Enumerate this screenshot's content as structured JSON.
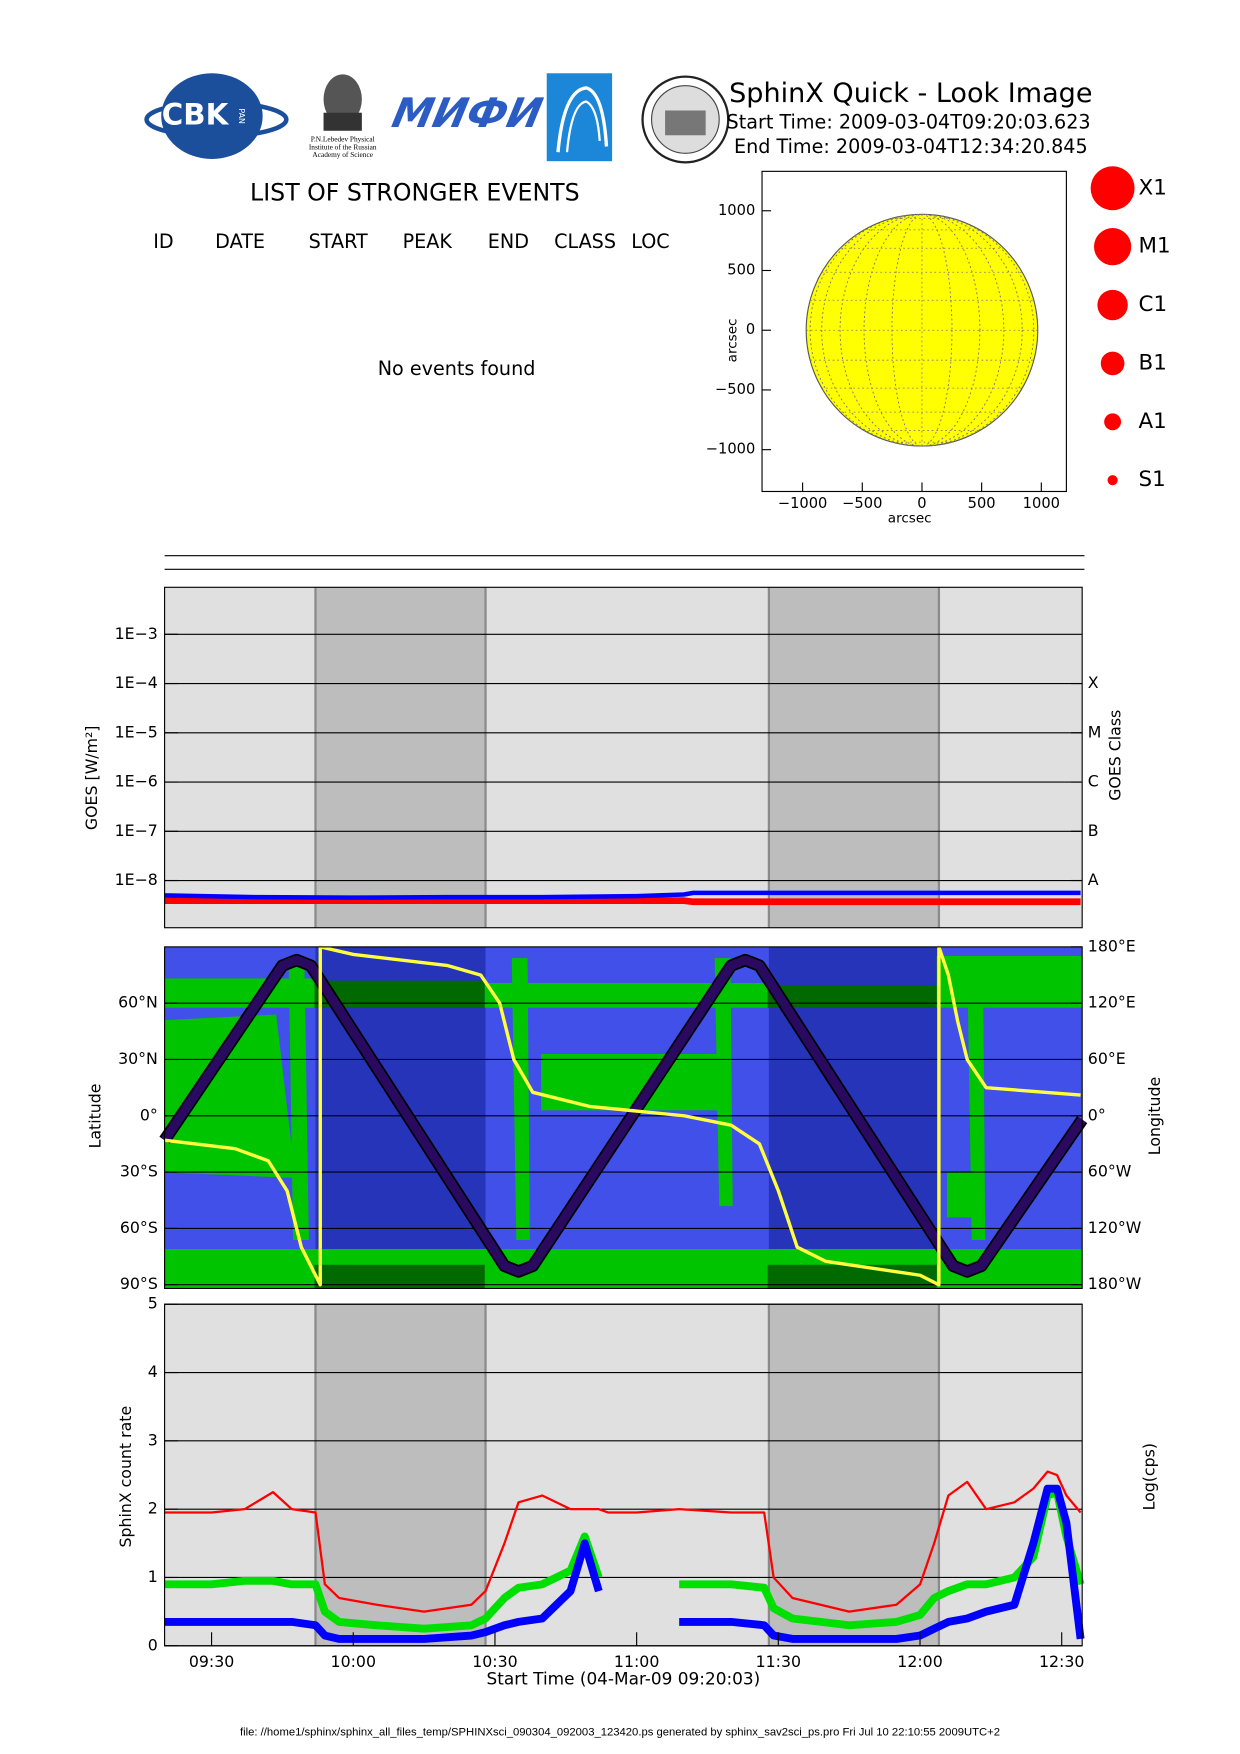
{
  "header": {
    "title": "SphinX Quick - Look Image",
    "start_time": "Start Time: 2009-03-04T09:20:03.623",
    "end_time": "End Time: 2009-03-04T12:34:20.845"
  },
  "logos": {
    "cbk": "CBK",
    "cbk_sub": "PAN",
    "lebedev": [
      "P.N.Lebedev Physical",
      "Institute of the Russian",
      "Academy of Science"
    ],
    "mifi": "МИФИ"
  },
  "events": {
    "title": "LIST OF STRONGER EVENTS",
    "columns": [
      "ID",
      "DATE",
      "START",
      "PEAK",
      "END",
      "CLASS",
      "LOC"
    ],
    "message": "No events found"
  },
  "footer": "file: //home1/sphinx/sphinx_all_files_temp/SPHINXsci_090304_092003_123420.ps generated by sphinx_sav2sci_ps.pro Fri Jul 10 22:10:55 2009UTC+2",
  "chart_data": [
    {
      "type": "disk",
      "xlabel": "arcsec",
      "ylabel": "arcsec",
      "xlim": [
        -1340,
        1210
      ],
      "ylim": [
        -1350,
        1330
      ],
      "xticks": [
        {
          "value": -1000,
          "label": "−1000"
        },
        {
          "value": -500,
          "label": "−500"
        },
        0,
        500,
        1000
      ],
      "yticks": [
        {
          "value": -1000,
          "label": "−1000"
        },
        {
          "value": -500,
          "label": "−500"
        },
        0,
        500,
        1000
      ],
      "radius": 970,
      "disk_color": "#ffff00",
      "legend": {
        "labels": [
          "X1",
          "M1",
          "C1",
          "B1",
          "A1",
          "S1"
        ],
        "color": "#ff0000"
      }
    },
    {
      "type": "line",
      "ylabel": "GOES [W/m²]",
      "y2label": "GOES Class",
      "log_y": true,
      "grid": true,
      "xlim": [
        "09:20:03",
        "12:34:20"
      ],
      "ylim": [
        1.1e-09,
        0.009
      ],
      "yticks": [
        {
          "value": 1e-08,
          "label": "1E−8"
        },
        {
          "value": 1e-07,
          "label": "1E−7"
        },
        {
          "value": 1e-06,
          "label": "1E−6"
        },
        {
          "value": 1e-05,
          "label": "1E−5"
        },
        {
          "value": 0.0001,
          "label": "1E−4"
        },
        {
          "value": 0.001,
          "label": "1E−3"
        }
      ],
      "y2ticks": [
        {
          "value": 1e-08,
          "label": "A"
        },
        {
          "value": 1e-07,
          "label": "B"
        },
        {
          "value": 1e-06,
          "label": "C"
        },
        {
          "value": 1e-05,
          "label": "M"
        },
        {
          "value": 0.0001,
          "label": "X"
        }
      ],
      "background_color": "#e0e0e0",
      "shade_color": "#bdbdbd",
      "shaded_intervals": [
        [
          "09:52",
          "10:28"
        ],
        [
          "11:28",
          "12:04"
        ]
      ],
      "x": [
        "09:20",
        "09:40",
        "10:00",
        "10:20",
        "10:40",
        "11:00",
        "11:10",
        "11:12",
        "11:30",
        "12:00",
        "12:34"
      ],
      "series": [
        {
          "color": "#ff0000",
          "values": [
            3.9e-09,
            3.9e-09,
            3.9e-09,
            3.9e-09,
            3.9e-09,
            3.9e-09,
            3.9e-09,
            3.7e-09,
            3.7e-09,
            3.7e-09,
            3.7e-09
          ]
        },
        {
          "color": "#0000ff",
          "values": [
            5e-09,
            4.6e-09,
            4.5e-09,
            4.6e-09,
            4.6e-09,
            4.8e-09,
            5.2e-09,
            5.6e-09,
            5.6e-09,
            5.6e-09,
            5.6e-09
          ]
        }
      ]
    },
    {
      "type": "line",
      "ylabel": "Latitude",
      "y2label": "Longitude",
      "grid": true,
      "xlim": [
        "09:20:03",
        "12:34:20"
      ],
      "ylim": [
        -92,
        90
      ],
      "y2lim": [
        -184,
        180
      ],
      "yticks": [
        {
          "value": -90,
          "label": "90°S"
        },
        {
          "value": -60,
          "label": "60°S"
        },
        {
          "value": -30,
          "label": "30°S"
        },
        {
          "value": 0,
          "label": "0°"
        },
        {
          "value": 30,
          "label": "30°N"
        },
        {
          "value": 60,
          "label": "60°N"
        }
      ],
      "y2ticks": [
        {
          "value": -180,
          "label": "180°W"
        },
        {
          "value": -120,
          "label": "120°W"
        },
        {
          "value": -60,
          "label": "60°W"
        },
        {
          "value": 0,
          "label": "0°"
        },
        {
          "value": 60,
          "label": "60°E"
        },
        {
          "value": 120,
          "label": "120°E"
        },
        {
          "value": 180,
          "label": "180°E"
        }
      ],
      "background_color": "#4050e8",
      "shade_color": "#2534b8",
      "shaded_intervals": [
        [
          "09:52",
          "10:28"
        ],
        [
          "11:28",
          "12:04"
        ]
      ],
      "series": [
        {
          "color": "#2a0a60",
          "x": [
            "09:20:03",
            "09:45",
            "09:48",
            "09:51",
            "10:32",
            "10:35",
            "10:38",
            "11:20",
            "11:23",
            "11:26",
            "12:07",
            "12:10",
            "12:13",
            "12:34:20"
          ],
          "values": [
            -13,
            80,
            83,
            80,
            -80,
            -83,
            -80,
            80,
            83,
            80,
            -80,
            -83,
            -80,
            -2
          ]
        },
        {
          "color": "#ffff40",
          "axis": "y2",
          "x": [
            "09:20",
            "09:35",
            "09:42",
            "09:46",
            "09:49",
            "09:53",
            "09:53",
            "10:00",
            "10:20",
            "10:27",
            "10:31",
            "10:34",
            "10:38",
            "10:50",
            "11:10",
            "11:20",
            "11:26",
            "11:30",
            "11:34",
            "11:40",
            "12:00",
            "12:04",
            "12:04",
            "12:06",
            "12:08",
            "12:10",
            "12:14",
            "12:34"
          ],
          "values": [
            -26,
            -35,
            -48,
            -80,
            -140,
            -180,
            180,
            172,
            160,
            150,
            120,
            60,
            25,
            10,
            0,
            -10,
            -30,
            -80,
            -140,
            -155,
            -170,
            -180,
            180,
            150,
            100,
            60,
            30,
            22
          ]
        }
      ]
    },
    {
      "type": "line",
      "ylabel": "SphinX count rate",
      "y2label": "Log(cps)",
      "xlabel": "Start Time (04-Mar-09 09:20:03)",
      "grid": true,
      "xlim": [
        "09:20:03",
        "12:34:20"
      ],
      "ylim": [
        0,
        5
      ],
      "yticks": [
        0,
        1,
        2,
        3,
        4,
        5
      ],
      "xticks": [
        "09:30",
        "10:00",
        "10:30",
        "11:00",
        "11:30",
        "12:00",
        "12:30"
      ],
      "background_color": "#e0e0e0",
      "shade_color": "#bdbdbd",
      "shaded_intervals": [
        [
          "09:52",
          "10:28"
        ],
        [
          "11:28",
          "12:04"
        ]
      ],
      "x": [
        "09:20",
        "09:30",
        "09:37",
        "09:43",
        "09:47",
        "09:52",
        "09:54",
        "09:57",
        "10:05",
        "10:15",
        "10:25",
        "10:28",
        "10:32",
        "10:35",
        "10:40",
        "10:46",
        "10:49",
        "10:52",
        "10:54",
        "11:00",
        "11:09",
        "11:20",
        "11:27",
        "11:29",
        "11:33",
        "11:45",
        "11:55",
        "12:00",
        "12:03",
        "12:06",
        "12:10",
        "12:14",
        "12:20",
        "12:24",
        "12:27",
        "12:29",
        "12:31",
        "12:34"
      ],
      "series": [
        {
          "color": "#00e000",
          "values": [
            0.9,
            0.9,
            0.95,
            0.95,
            0.9,
            0.9,
            0.5,
            0.35,
            0.3,
            0.25,
            0.3,
            0.4,
            0.7,
            0.85,
            0.9,
            1.1,
            1.6,
            1.0,
            null,
            null,
            0.9,
            0.9,
            0.85,
            0.55,
            0.4,
            0.3,
            0.35,
            0.45,
            0.7,
            0.8,
            0.9,
            0.9,
            1.0,
            1.3,
            2.2,
            2.25,
            1.6,
            0.9
          ]
        },
        {
          "color": "#0000ff",
          "values": [
            0.35,
            0.35,
            0.35,
            0.35,
            0.35,
            0.3,
            0.15,
            0.1,
            0.1,
            0.1,
            0.15,
            0.2,
            0.3,
            0.35,
            0.4,
            0.8,
            1.5,
            0.8,
            null,
            null,
            0.35,
            0.35,
            0.3,
            0.15,
            0.1,
            0.1,
            0.1,
            0.15,
            0.25,
            0.35,
            0.4,
            0.5,
            0.6,
            1.5,
            2.3,
            2.3,
            1.8,
            0.1
          ]
        },
        {
          "color": "#ff0000",
          "values": [
            1.95,
            1.95,
            2.0,
            2.25,
            2.0,
            1.95,
            0.9,
            0.7,
            0.6,
            0.5,
            0.6,
            0.8,
            1.5,
            2.1,
            2.2,
            2.0,
            2.0,
            2.0,
            1.95,
            1.95,
            2.0,
            1.95,
            1.95,
            1.0,
            0.7,
            0.5,
            0.6,
            0.9,
            1.5,
            2.2,
            2.4,
            2.0,
            2.1,
            2.3,
            2.55,
            2.5,
            2.2,
            1.95
          ]
        }
      ]
    }
  ]
}
